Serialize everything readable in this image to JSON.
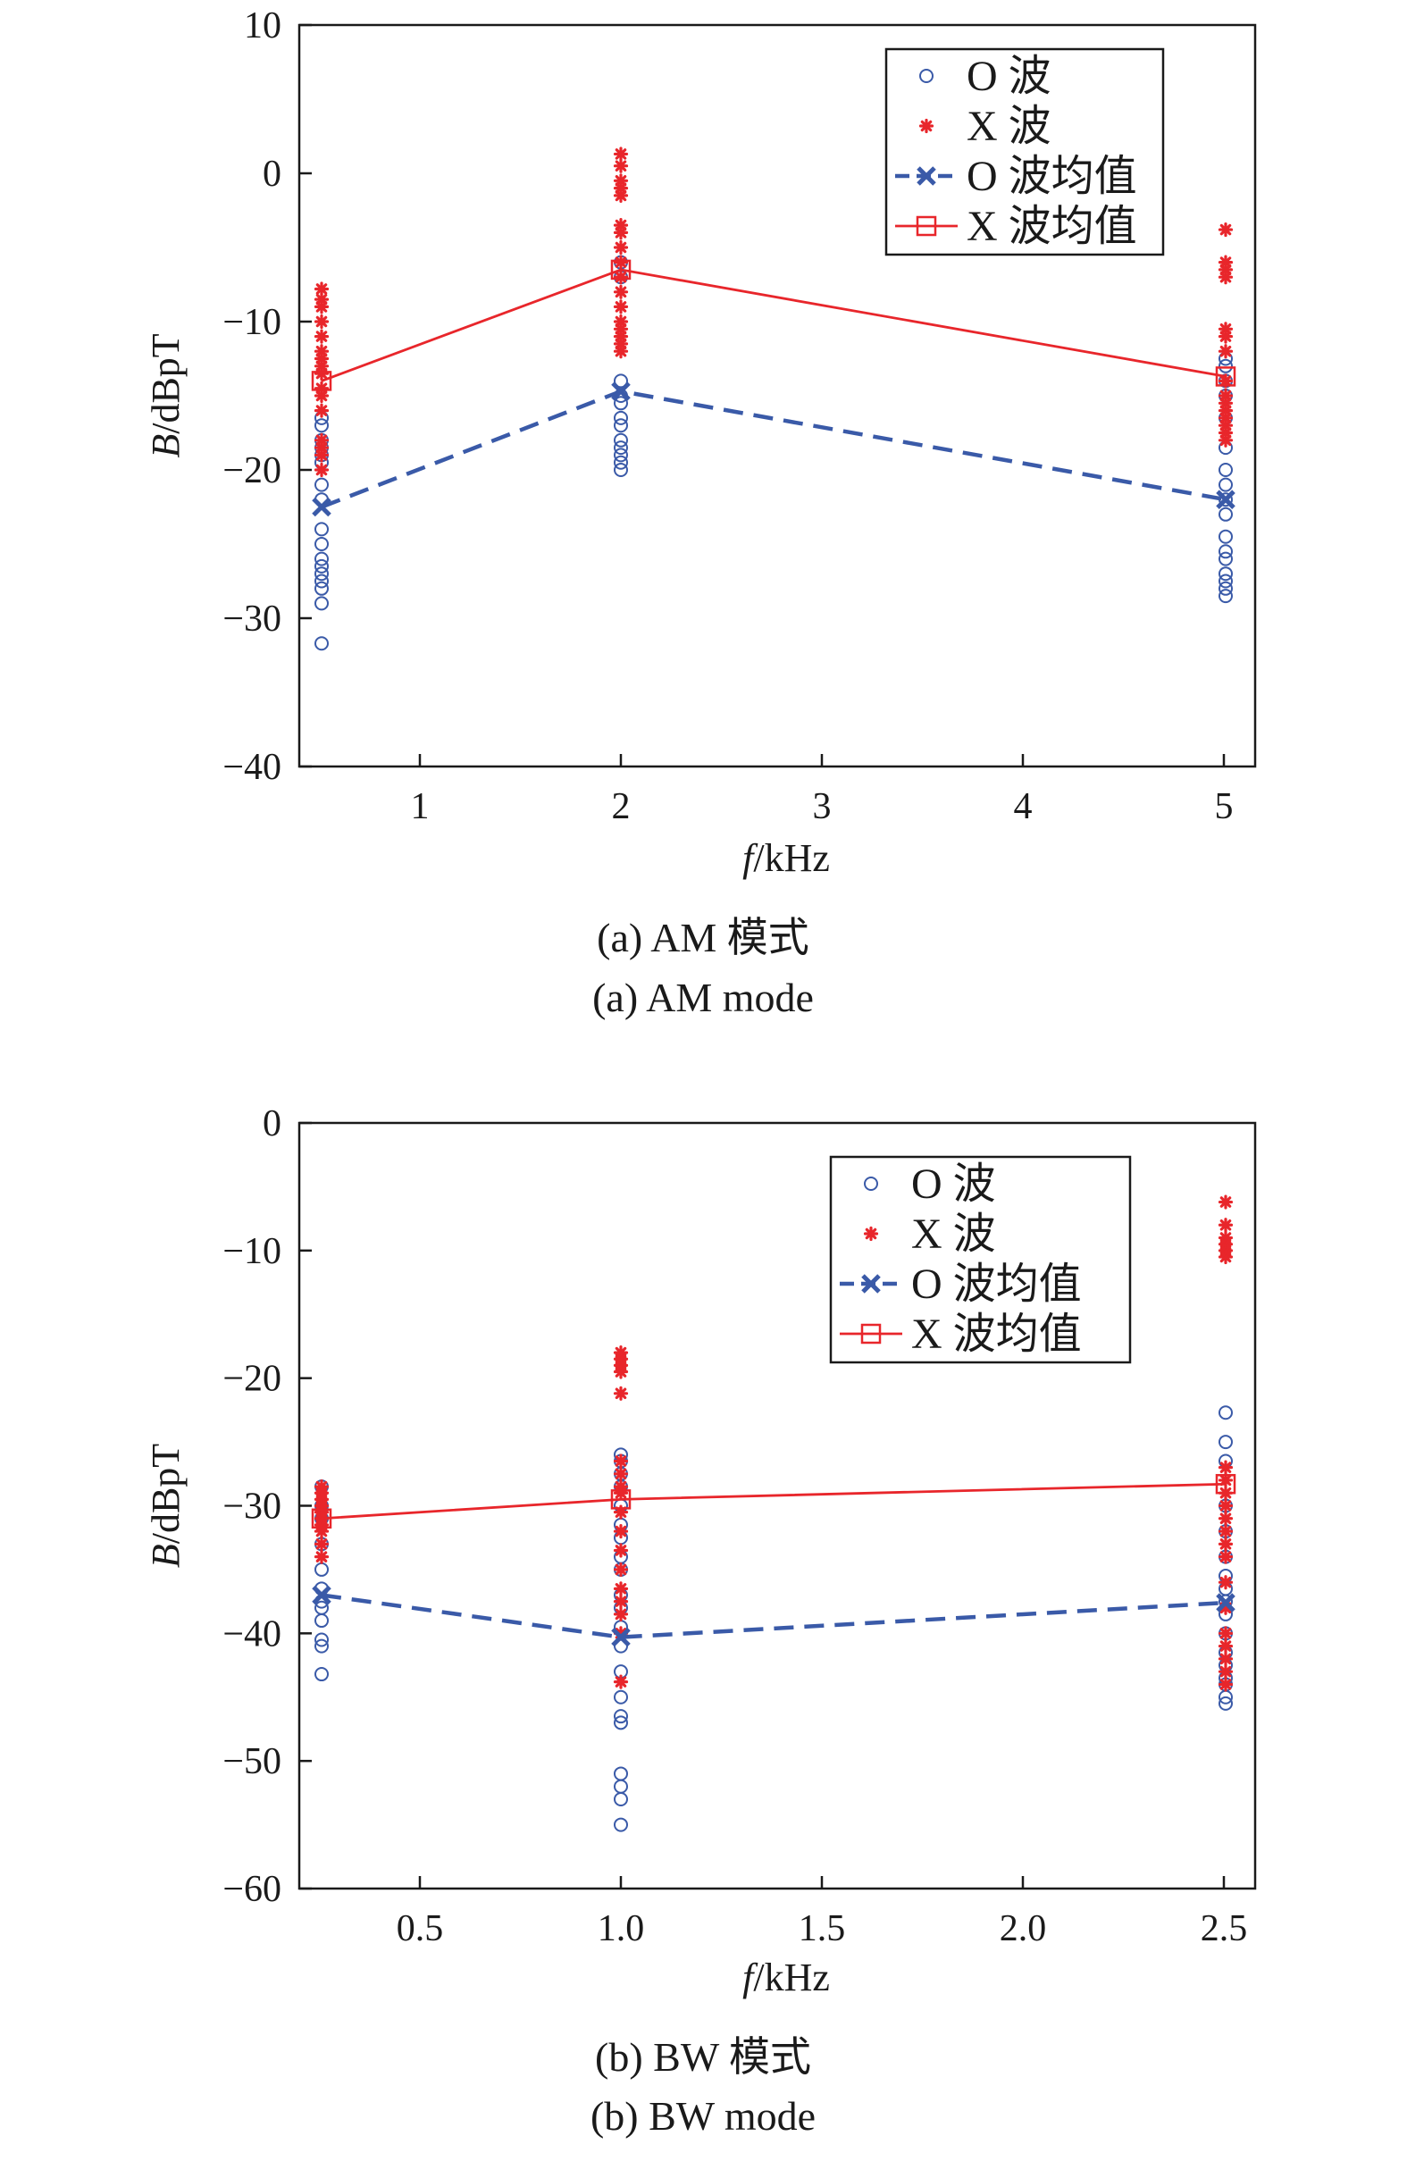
{
  "colors": {
    "o_wave": "#3a5aa8",
    "x_wave": "#e8262b",
    "axis": "#1a1a1a"
  },
  "chart_data": [
    {
      "type": "scatter",
      "caption_cn": "(a) AM 模式",
      "caption_en": "(a) AM mode",
      "xlabel_italic": "f",
      "xlabel_unit": "/kHz",
      "ylabel_italic": "B",
      "ylabel_unit": "/dBpT",
      "xaxis_scale": "categorical-ordinal",
      "x_ticks": [
        "1",
        "2",
        "3",
        "4",
        "5"
      ],
      "y_ticks": [
        "10",
        "0",
        "−10",
        "−20",
        "−30",
        "−40"
      ],
      "ylim": [
        -40,
        10
      ],
      "grid": false,
      "legend_position": "top-right",
      "categories": [
        "0.5",
        "2",
        "5"
      ],
      "series": [
        {
          "name": "O 波",
          "kind": "scatter-o",
          "points": [
            [
              0.5,
              -16.5
            ],
            [
              0.5,
              -17.0
            ],
            [
              0.5,
              -18.0
            ],
            [
              0.5,
              -18.5
            ],
            [
              0.5,
              -19.0
            ],
            [
              0.5,
              -19.5
            ],
            [
              0.5,
              -21.0
            ],
            [
              0.5,
              -22.0
            ],
            [
              0.5,
              -24.0
            ],
            [
              0.5,
              -25.0
            ],
            [
              0.5,
              -26.0
            ],
            [
              0.5,
              -26.5
            ],
            [
              0.5,
              -27.0
            ],
            [
              0.5,
              -27.5
            ],
            [
              0.5,
              -28.0
            ],
            [
              0.5,
              -29.0
            ],
            [
              0.5,
              -31.7
            ],
            [
              2,
              -6.0
            ],
            [
              2,
              -7.0
            ],
            [
              2,
              -14.0
            ],
            [
              2,
              -15.0
            ],
            [
              2,
              -15.5
            ],
            [
              2,
              -16.5
            ],
            [
              2,
              -17.0
            ],
            [
              2,
              -18.0
            ],
            [
              2,
              -18.5
            ],
            [
              2,
              -19.0
            ],
            [
              2,
              -19.5
            ],
            [
              2,
              -20.0
            ],
            [
              5,
              -12.5
            ],
            [
              5,
              -13.0
            ],
            [
              5,
              -14.0
            ],
            [
              5,
              -15.0
            ],
            [
              5,
              -16.5
            ],
            [
              5,
              -18.5
            ],
            [
              5,
              -20.0
            ],
            [
              5,
              -21.0
            ],
            [
              5,
              -22.0
            ],
            [
              5,
              -23.0
            ],
            [
              5,
              -24.5
            ],
            [
              5,
              -25.5
            ],
            [
              5,
              -26.0
            ],
            [
              5,
              -27.0
            ],
            [
              5,
              -27.5
            ],
            [
              5,
              -28.0
            ],
            [
              5,
              -28.5
            ]
          ]
        },
        {
          "name": "X 波",
          "kind": "scatter-x",
          "points": [
            [
              0.5,
              -7.8
            ],
            [
              0.5,
              -8.5
            ],
            [
              0.5,
              -9.0
            ],
            [
              0.5,
              -10.0
            ],
            [
              0.5,
              -11.0
            ],
            [
              0.5,
              -12.0
            ],
            [
              0.5,
              -12.5
            ],
            [
              0.5,
              -13.0
            ],
            [
              0.5,
              -13.5
            ],
            [
              0.5,
              -14.5
            ],
            [
              0.5,
              -15.0
            ],
            [
              0.5,
              -16.0
            ],
            [
              0.5,
              -18.0
            ],
            [
              0.5,
              -18.5
            ],
            [
              0.5,
              -19.0
            ],
            [
              0.5,
              -20.0
            ],
            [
              2,
              1.3
            ],
            [
              2,
              0.5
            ],
            [
              2,
              -0.5
            ],
            [
              2,
              -1.0
            ],
            [
              2,
              -1.5
            ],
            [
              2,
              -3.5
            ],
            [
              2,
              -4.0
            ],
            [
              2,
              -5.0
            ],
            [
              2,
              -6.0
            ],
            [
              2,
              -7.0
            ],
            [
              2,
              -8.0
            ],
            [
              2,
              -9.0
            ],
            [
              2,
              -10.0
            ],
            [
              2,
              -10.5
            ],
            [
              2,
              -11.0
            ],
            [
              2,
              -11.5
            ],
            [
              2,
              -12.0
            ],
            [
              5,
              -3.8
            ],
            [
              5,
              -6.0
            ],
            [
              5,
              -6.5
            ],
            [
              5,
              -7.0
            ],
            [
              5,
              -10.5
            ],
            [
              5,
              -11.0
            ],
            [
              5,
              -12.0
            ],
            [
              5,
              -14.0
            ],
            [
              5,
              -15.0
            ],
            [
              5,
              -15.5
            ],
            [
              5,
              -16.0
            ],
            [
              5,
              -16.5
            ],
            [
              5,
              -17.0
            ],
            [
              5,
              -17.5
            ],
            [
              5,
              -18.0
            ]
          ]
        },
        {
          "name": "O 波均值",
          "kind": "mean-o",
          "x": [
            0.5,
            2,
            5
          ],
          "y": [
            -22.5,
            -14.7,
            -22.0
          ]
        },
        {
          "name": "X 波均值",
          "kind": "mean-x",
          "x": [
            0.5,
            2,
            5
          ],
          "y": [
            -14.0,
            -6.5,
            -13.7
          ]
        }
      ]
    },
    {
      "type": "scatter",
      "caption_cn": "(b) BW 模式",
      "caption_en": "(b) BW mode",
      "xlabel_italic": "f",
      "xlabel_unit": "/kHz",
      "ylabel_italic": "B",
      "ylabel_unit": "/dBpT",
      "xaxis_scale": "categorical-ordinal",
      "x_ticks": [
        "0.5",
        "1.0",
        "1.5",
        "2.0",
        "2.5"
      ],
      "y_ticks": [
        "0",
        "−10",
        "−20",
        "−30",
        "−40",
        "−50",
        "−60"
      ],
      "ylim": [
        -60,
        0
      ],
      "grid": false,
      "legend_position": "top-right",
      "categories": [
        "0.25",
        "1.0",
        "2.5"
      ],
      "series": [
        {
          "name": "O 波",
          "kind": "scatter-o",
          "points": [
            [
              0.25,
              -28.5
            ],
            [
              0.25,
              -30.0
            ],
            [
              0.25,
              -31.0
            ],
            [
              0.25,
              -33.0
            ],
            [
              0.25,
              -35.0
            ],
            [
              0.25,
              -36.5
            ],
            [
              0.25,
              -37.5
            ],
            [
              0.25,
              -38.0
            ],
            [
              0.25,
              -39.0
            ],
            [
              0.25,
              -40.5
            ],
            [
              0.25,
              -41.0
            ],
            [
              0.25,
              -43.2
            ],
            [
              1.0,
              -26.0
            ],
            [
              1.0,
              -26.5
            ],
            [
              1.0,
              -27.5
            ],
            [
              1.0,
              -28.5
            ],
            [
              1.0,
              -30.0
            ],
            [
              1.0,
              -31.5
            ],
            [
              1.0,
              -32.5
            ],
            [
              1.0,
              -34.0
            ],
            [
              1.0,
              -35.0
            ],
            [
              1.0,
              -37.0
            ],
            [
              1.0,
              -38.0
            ],
            [
              1.0,
              -39.5
            ],
            [
              1.0,
              -41.0
            ],
            [
              1.0,
              -43.0
            ],
            [
              1.0,
              -45.0
            ],
            [
              1.0,
              -46.5
            ],
            [
              1.0,
              -47.0
            ],
            [
              1.0,
              -51.0
            ],
            [
              1.0,
              -52.0
            ],
            [
              1.0,
              -53.0
            ],
            [
              1.0,
              -55.0
            ],
            [
              2.5,
              -22.7
            ],
            [
              2.5,
              -25.0
            ],
            [
              2.5,
              -26.5
            ],
            [
              2.5,
              -30.0
            ],
            [
              2.5,
              -32.0
            ],
            [
              2.5,
              -34.0
            ],
            [
              2.5,
              -35.5
            ],
            [
              2.5,
              -36.5
            ],
            [
              2.5,
              -37.5
            ],
            [
              2.5,
              -38.5
            ],
            [
              2.5,
              -40.0
            ],
            [
              2.5,
              -41.5
            ],
            [
              2.5,
              -42.5
            ],
            [
              2.5,
              -43.5
            ],
            [
              2.5,
              -44.0
            ],
            [
              2.5,
              -45.0
            ],
            [
              2.5,
              -45.5
            ]
          ]
        },
        {
          "name": "X 波",
          "kind": "scatter-x",
          "points": [
            [
              0.25,
              -28.5
            ],
            [
              0.25,
              -29.0
            ],
            [
              0.25,
              -29.5
            ],
            [
              0.25,
              -30.0
            ],
            [
              0.25,
              -30.5
            ],
            [
              0.25,
              -31.0
            ],
            [
              0.25,
              -31.5
            ],
            [
              0.25,
              -32.0
            ],
            [
              0.25,
              -33.0
            ],
            [
              0.25,
              -34.0
            ],
            [
              1.0,
              -18.0
            ],
            [
              1.0,
              -18.5
            ],
            [
              1.0,
              -19.0
            ],
            [
              1.0,
              -19.5
            ],
            [
              1.0,
              -21.2
            ],
            [
              1.0,
              -26.5
            ],
            [
              1.0,
              -27.5
            ],
            [
              1.0,
              -28.5
            ],
            [
              1.0,
              -29.0
            ],
            [
              1.0,
              -30.5
            ],
            [
              1.0,
              -32.0
            ],
            [
              1.0,
              -33.5
            ],
            [
              1.0,
              -35.0
            ],
            [
              1.0,
              -36.5
            ],
            [
              1.0,
              -37.5
            ],
            [
              1.0,
              -38.5
            ],
            [
              1.0,
              -40.0
            ],
            [
              1.0,
              -43.8
            ],
            [
              2.5,
              -6.2
            ],
            [
              2.5,
              -8.0
            ],
            [
              2.5,
              -9.0
            ],
            [
              2.5,
              -9.5
            ],
            [
              2.5,
              -10.0
            ],
            [
              2.5,
              -10.5
            ],
            [
              2.5,
              -27.0
            ],
            [
              2.5,
              -28.0
            ],
            [
              2.5,
              -29.0
            ],
            [
              2.5,
              -30.0
            ],
            [
              2.5,
              -31.0
            ],
            [
              2.5,
              -32.0
            ],
            [
              2.5,
              -33.0
            ],
            [
              2.5,
              -34.0
            ],
            [
              2.5,
              -36.0
            ],
            [
              2.5,
              -38.0
            ],
            [
              2.5,
              -40.0
            ],
            [
              2.5,
              -41.0
            ],
            [
              2.5,
              -42.0
            ],
            [
              2.5,
              -43.0
            ],
            [
              2.5,
              -44.0
            ]
          ]
        },
        {
          "name": "O 波均值",
          "kind": "mean-o",
          "x": [
            0.25,
            1.0,
            2.5
          ],
          "y": [
            -37.0,
            -40.3,
            -37.6
          ]
        },
        {
          "name": "X 波均值",
          "kind": "mean-x",
          "x": [
            0.25,
            1.0,
            2.5
          ],
          "y": [
            -31.0,
            -29.5,
            -28.3
          ]
        }
      ]
    }
  ]
}
